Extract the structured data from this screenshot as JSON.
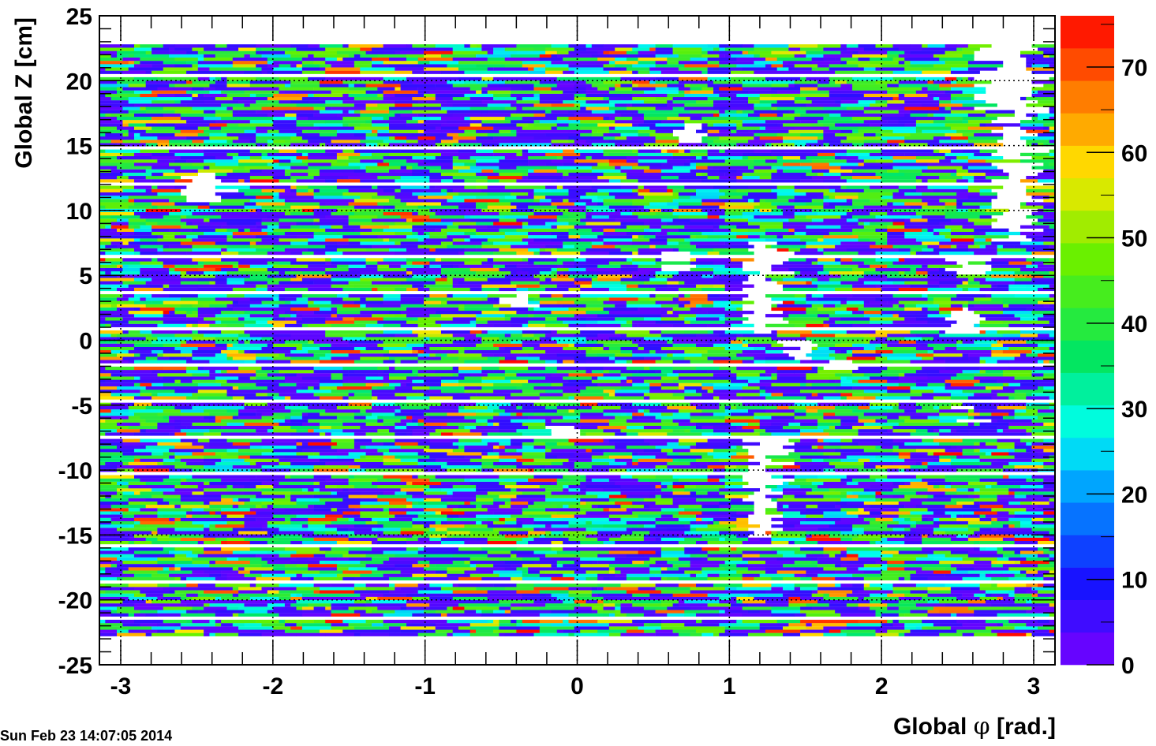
{
  "chart_data": {
    "type": "heatmap",
    "title": "",
    "xlabel_prefix": "Global ",
    "xlabel_symbol": "φ",
    "xlabel_suffix": " [rad.]",
    "ylabel": "Global Z [cm]",
    "xlim": [
      -3.14,
      3.14
    ],
    "ylim": [
      -25,
      25
    ],
    "x_ticks": [
      "-3",
      "-2",
      "-1",
      "0",
      "1",
      "2",
      "3"
    ],
    "y_ticks": [
      "25",
      "20",
      "15",
      "10",
      "5",
      "0",
      "-5",
      "-10",
      "-15",
      "-20",
      "-25"
    ],
    "grid": true,
    "colorbar": {
      "range": [
        0,
        76
      ],
      "ticks": [
        "0",
        "10",
        "20",
        "30",
        "40",
        "50",
        "60",
        "70"
      ]
    },
    "data_extent": {
      "z": [
        -22.8,
        22.8
      ],
      "phi": [
        -3.14,
        3.14
      ]
    },
    "cell_summary": "Occupancy map; most cells hold 0–55 entries (blue–violet and cyan–green), a few reach 60–76 (yellow–red)",
    "empty_regions": [
      {
        "phi": [
          -2.6,
          -2.43
        ],
        "z": [
          10.5,
          12.9
        ]
      },
      {
        "phi": [
          0.57,
          0.75
        ],
        "z": [
          15.2,
          16.8
        ]
      },
      {
        "phi": [
          0.57,
          0.75
        ],
        "z": [
          5.2,
          6.8
        ]
      },
      {
        "phi": [
          -0.5,
          -0.32
        ],
        "z": [
          2.5,
          3.7
        ]
      },
      {
        "phi": [
          1.07,
          1.25
        ],
        "z": [
          0.4,
          7.5
        ]
      },
      {
        "phi": [
          1.07,
          1.25
        ],
        "z": [
          -15.2,
          -7.5
        ]
      },
      {
        "phi": [
          1.33,
          1.5
        ],
        "z": [
          -1.6,
          0.0
        ]
      },
      {
        "phi": [
          1.6,
          1.8
        ],
        "z": [
          -2.6,
          -1.5
        ]
      },
      {
        "phi": [
          -0.25,
          -0.08
        ],
        "z": [
          -7.5,
          -6.5
        ]
      },
      {
        "phi": [
          2.4,
          2.57
        ],
        "z": [
          5.0,
          6.8
        ]
      },
      {
        "phi": [
          2.4,
          2.57
        ],
        "z": [
          0.4,
          2.6
        ]
      },
      {
        "phi": [
          2.4,
          2.57
        ],
        "z": [
          -6.3,
          -5.0
        ]
      },
      {
        "phi": [
          2.72,
          2.9
        ],
        "z": [
          7.6,
          22.8
        ]
      },
      {
        "phi": [
          2.62,
          2.9
        ],
        "z": [
          17.8,
          22.8
        ]
      }
    ]
  },
  "timestamp": "Sun Feb 23 14:07:05 2014"
}
